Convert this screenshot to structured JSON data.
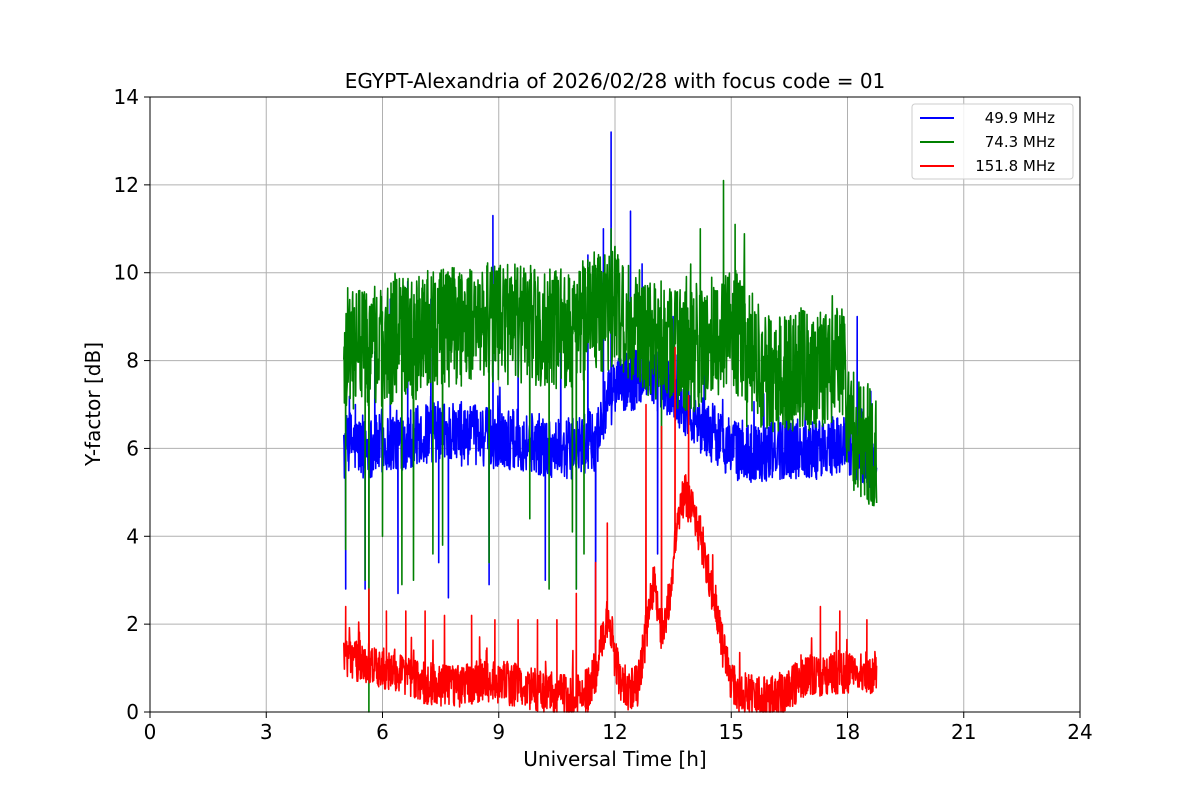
{
  "chart_data": {
    "type": "line",
    "title": "EGYPT-Alexandria of 2026/02/28 with focus code = 01",
    "xlabel": "Universal Time [h]",
    "ylabel": "Y-factor [dB]",
    "xlim": [
      0,
      24
    ],
    "ylim": [
      0,
      14
    ],
    "xticks": [
      0,
      3,
      6,
      9,
      12,
      15,
      18,
      21,
      24
    ],
    "xtick_labels": [
      "0",
      "3",
      "6",
      "9",
      "12",
      "15",
      "18",
      "21",
      "24"
    ],
    "yticks": [
      0,
      2,
      4,
      6,
      8,
      10,
      12,
      14
    ],
    "ytick_labels": [
      "0",
      "2",
      "4",
      "6",
      "8",
      "10",
      "12",
      "14"
    ],
    "grid": true,
    "legend_position": "top-right",
    "series": [
      {
        "name": "49.9 MHz",
        "color": "#0000ff",
        "x": [
          5.0,
          5.1,
          5.5,
          6.0,
          6.5,
          7.0,
          7.5,
          8.0,
          8.5,
          9.0,
          9.5,
          10.0,
          10.5,
          11.0,
          11.5,
          11.8,
          12.0,
          12.3,
          12.6,
          12.8,
          13.0,
          13.3,
          13.6,
          14.0,
          14.3,
          14.6,
          15.0,
          15.5,
          16.0,
          16.5,
          17.0,
          17.5,
          18.0,
          18.3,
          18.75
        ],
        "y": [
          5.8,
          6.2,
          6.0,
          6.1,
          6.2,
          6.3,
          6.4,
          6.3,
          6.3,
          6.2,
          6.2,
          6.1,
          6.0,
          6.0,
          6.2,
          7.0,
          7.4,
          7.5,
          7.6,
          7.8,
          7.6,
          7.4,
          7.2,
          6.8,
          6.5,
          6.3,
          6.0,
          5.9,
          5.9,
          6.0,
          6.0,
          6.0,
          6.1,
          5.9,
          5.6
        ],
        "spikes": [
          [
            5.05,
            2.8
          ],
          [
            5.3,
            7.0
          ],
          [
            5.55,
            2.8
          ],
          [
            5.8,
            8.2
          ],
          [
            6.2,
            9.4
          ],
          [
            6.4,
            2.7
          ],
          [
            6.65,
            9.8
          ],
          [
            7.25,
            9.4
          ],
          [
            7.45,
            3.4
          ],
          [
            7.7,
            2.6
          ],
          [
            8.75,
            2.9
          ],
          [
            8.85,
            11.3
          ],
          [
            9.5,
            9.2
          ],
          [
            10.2,
            3.0
          ],
          [
            10.6,
            9.4
          ],
          [
            11.0,
            2.8
          ],
          [
            11.3,
            10.4
          ],
          [
            11.5,
            0.9
          ],
          [
            11.7,
            11.0
          ],
          [
            11.9,
            13.2
          ],
          [
            12.4,
            11.4
          ],
          [
            12.7,
            10.2
          ],
          [
            13.1,
            3.6
          ],
          [
            13.5,
            9.0
          ],
          [
            14.3,
            8.2
          ],
          [
            15.0,
            6.2
          ],
          [
            16.0,
            5.4
          ],
          [
            17.2,
            5.3
          ],
          [
            18.25,
            9.0
          ],
          [
            18.6,
            7.3
          ]
        ],
        "noise": 0.7
      },
      {
        "name": "74.3 MHz",
        "color": "#008000",
        "x": [
          5.0,
          5.5,
          6.0,
          6.5,
          6.9,
          7.0,
          7.5,
          8.0,
          8.5,
          9.0,
          9.5,
          10.0,
          10.5,
          11.0,
          11.5,
          12.0,
          12.3,
          12.6,
          13.0,
          13.5,
          14.0,
          14.5,
          15.0,
          15.5,
          16.0,
          16.5,
          17.0,
          17.5,
          17.95,
          18.0,
          18.4,
          18.75
        ],
        "y": [
          8.3,
          8.3,
          8.3,
          8.5,
          8.5,
          8.6,
          8.8,
          8.8,
          8.9,
          8.9,
          8.8,
          8.8,
          8.7,
          8.8,
          9.1,
          9.2,
          9.0,
          8.8,
          8.5,
          8.3,
          8.2,
          8.5,
          8.8,
          8.2,
          7.6,
          7.7,
          7.8,
          7.8,
          7.8,
          6.6,
          6.2,
          6.0
        ],
        "spikes": [
          [
            5.05,
            3.7
          ],
          [
            5.3,
            7.2
          ],
          [
            5.55,
            3.0
          ],
          [
            5.65,
            0.0
          ],
          [
            6.0,
            4.0
          ],
          [
            6.5,
            2.9
          ],
          [
            6.8,
            3.0
          ],
          [
            7.3,
            3.6
          ],
          [
            7.55,
            3.8
          ],
          [
            8.75,
            3.4
          ],
          [
            9.8,
            4.4
          ],
          [
            10.3,
            2.8
          ],
          [
            10.5,
            9.9
          ],
          [
            10.9,
            4.1
          ],
          [
            11.0,
            2.8
          ],
          [
            11.2,
            3.6
          ],
          [
            11.7,
            10.0
          ],
          [
            11.9,
            11.0
          ],
          [
            12.0,
            10.6
          ],
          [
            13.2,
            6.0
          ],
          [
            14.2,
            11.0
          ],
          [
            14.8,
            12.1
          ],
          [
            15.1,
            11.1
          ],
          [
            15.4,
            6.5
          ],
          [
            16.8,
            9.2
          ],
          [
            17.3,
            9.1
          ],
          [
            17.9,
            9.0
          ]
        ],
        "noise": 1.4
      },
      {
        "name": "151.8 MHz",
        "color": "#ff0000",
        "x": [
          5.0,
          5.2,
          5.5,
          6.0,
          6.5,
          7.0,
          7.5,
          8.0,
          8.5,
          9.0,
          9.5,
          10.0,
          10.5,
          11.0,
          11.3,
          11.5,
          11.7,
          11.85,
          12.0,
          12.2,
          12.4,
          12.6,
          12.8,
          13.0,
          13.2,
          13.4,
          13.6,
          13.8,
          14.0,
          14.2,
          14.4,
          14.6,
          14.8,
          15.0,
          15.3,
          15.6,
          16.0,
          16.3,
          16.6,
          17.0,
          17.5,
          18.0,
          18.5,
          18.75
        ],
        "y": [
          1.3,
          1.2,
          1.1,
          1.0,
          0.9,
          0.7,
          0.6,
          0.6,
          0.7,
          0.7,
          0.6,
          0.5,
          0.4,
          0.4,
          0.5,
          0.9,
          1.8,
          2.2,
          1.2,
          0.6,
          0.5,
          0.6,
          1.8,
          3.0,
          1.8,
          2.6,
          4.2,
          5.0,
          4.6,
          4.0,
          3.2,
          2.4,
          1.4,
          0.6,
          0.4,
          0.4,
          0.3,
          0.4,
          0.6,
          0.8,
          0.9,
          0.9,
          0.9,
          0.9
        ],
        "spikes": [
          [
            5.05,
            2.4
          ],
          [
            5.65,
            2.8
          ],
          [
            6.1,
            2.3
          ],
          [
            6.6,
            2.3
          ],
          [
            7.1,
            2.3
          ],
          [
            7.6,
            2.2
          ],
          [
            8.3,
            2.2
          ],
          [
            8.9,
            2.1
          ],
          [
            9.5,
            2.1
          ],
          [
            10.0,
            2.1
          ],
          [
            10.5,
            2.1
          ],
          [
            11.0,
            2.7
          ],
          [
            11.3,
            0.0
          ],
          [
            11.5,
            3.4
          ],
          [
            11.8,
            4.3
          ],
          [
            12.8,
            7.0
          ],
          [
            13.2,
            6.5
          ],
          [
            13.55,
            8.3
          ],
          [
            13.9,
            7.2
          ],
          [
            16.8,
            1.3
          ],
          [
            17.3,
            2.4
          ],
          [
            17.8,
            2.3
          ],
          [
            18.5,
            2.1
          ]
        ],
        "noise": 0.5
      }
    ]
  }
}
